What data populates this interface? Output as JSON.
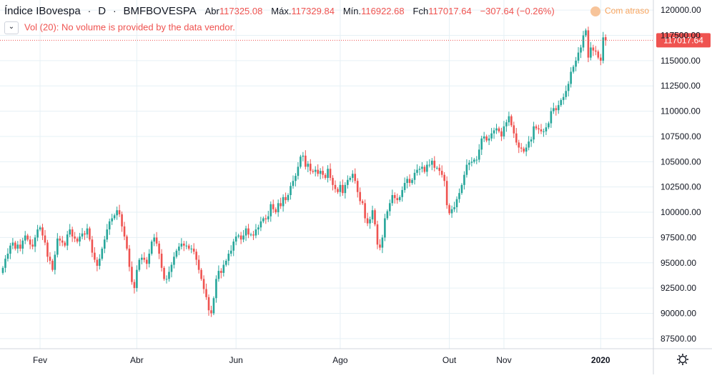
{
  "header": {
    "symbol": "Índice IBovespa",
    "interval": "D",
    "exchange": "BMFBOVESPA",
    "open_label": "Abr",
    "open": "117325.08",
    "high_label": "Máx.",
    "high": "117329.84",
    "low_label": "Mín.",
    "low": "116922.68",
    "close_label": "Fch",
    "close": "117017.64",
    "change": "−307.64 (−0.26%)",
    "delayed_label": "Com atraso"
  },
  "volume": {
    "toggle_icon": "chevron-down-icon",
    "message": "Vol (20): No volume is provided by the data vendor."
  },
  "settings_icon": "gear-icon",
  "colors": {
    "up": "#26a69a",
    "down": "#ef5350",
    "grid": "#e6f0f5",
    "axis_text": "#131722",
    "last_price_bg": "#ef5350"
  },
  "chart_data": {
    "type": "candlestick",
    "title": "",
    "xlabel": "",
    "ylabel": "",
    "ylim": [
      86500,
      121000
    ],
    "yticks": [
      "87500.00",
      "90000.00",
      "92500.00",
      "95000.00",
      "97500.00",
      "100000.00",
      "102500.00",
      "105000.00",
      "107500.00",
      "110000.00",
      "112500.00",
      "115000.00",
      "117500.00",
      "120000.00"
    ],
    "x_tick_labels": [
      {
        "index": 15,
        "label": "Fev"
      },
      {
        "index": 54,
        "label": "Abr"
      },
      {
        "index": 94,
        "label": "Jun"
      },
      {
        "index": 136,
        "label": "Ago"
      },
      {
        "index": 180,
        "label": "Out"
      },
      {
        "index": 202,
        "label": "Nov"
      },
      {
        "index": 241,
        "label": "2020"
      }
    ],
    "last_price": "117017.64",
    "grid": true,
    "close": [
      94500,
      95400,
      95900,
      96700,
      97000,
      96400,
      96800,
      96400,
      97200,
      97700,
      97300,
      96800,
      96600,
      97500,
      98300,
      98500,
      97700,
      97000,
      95600,
      95200,
      94300,
      95800,
      97400,
      97200,
      97000,
      96700,
      97800,
      98300,
      97600,
      97400,
      97100,
      97600,
      97900,
      97800,
      98400,
      97300,
      96000,
      95300,
      94700,
      95400,
      96400,
      97300,
      98300,
      99100,
      99400,
      99700,
      100200,
      99800,
      98600,
      97600,
      96400,
      94600,
      93100,
      92500,
      94300,
      95300,
      95500,
      95300,
      94900,
      95900,
      97100,
      97500,
      96900,
      95900,
      94500,
      93400,
      93400,
      94100,
      94800,
      95600,
      96200,
      96600,
      96900,
      96700,
      96700,
      96400,
      96400,
      96100,
      95300,
      94300,
      93400,
      92400,
      91600,
      90300,
      90000,
      91500,
      93400,
      94200,
      94000,
      94800,
      95200,
      95900,
      96200,
      97100,
      97600,
      97700,
      97300,
      97700,
      98400,
      97800,
      97800,
      97700,
      98300,
      98500,
      99100,
      99400,
      99300,
      99600,
      100800,
      100300,
      100000,
      100900,
      100600,
      101500,
      101200,
      101700,
      102600,
      103100,
      103600,
      104500,
      105500,
      105600,
      104500,
      104800,
      104100,
      104000,
      104200,
      103800,
      104100,
      103700,
      103400,
      104300,
      103400,
      102700,
      102300,
      102000,
      102700,
      101900,
      102700,
      103200,
      103400,
      103800,
      103100,
      102000,
      101100,
      100900,
      99400,
      98900,
      99300,
      100200,
      98800,
      96800,
      96500,
      97500,
      99400,
      100100,
      100900,
      101700,
      101400,
      101200,
      101500,
      102200,
      102900,
      103300,
      102900,
      103200,
      103900,
      104200,
      104300,
      104500,
      104000,
      104700,
      104700,
      105100,
      104400,
      104400,
      104100,
      103700,
      103100,
      100700,
      99900,
      100300,
      100500,
      101300,
      101900,
      102700,
      103700,
      104700,
      104900,
      105000,
      105200,
      105200,
      106200,
      107300,
      107500,
      107100,
      107300,
      107800,
      108100,
      108300,
      108000,
      107500,
      108500,
      108900,
      109500,
      108600,
      107800,
      106900,
      106400,
      106300,
      106000,
      106400,
      107000,
      107200,
      108500,
      108300,
      108200,
      108000,
      108000,
      108400,
      108800,
      110000,
      110300,
      110100,
      110600,
      111100,
      111400,
      112000,
      112700,
      113900,
      114400,
      115000,
      115800,
      116300,
      117500,
      118000,
      115300,
      116300,
      116000,
      115900,
      115300,
      115000,
      117300,
      117017.64
    ],
    "open": [
      94000,
      94500,
      95400,
      95900,
      96700,
      97000,
      96400,
      96800,
      96400,
      97200,
      97700,
      97300,
      96800,
      96600,
      97500,
      98300,
      98500,
      97700,
      97000,
      95600,
      95200,
      94300,
      95800,
      97400,
      97200,
      97000,
      96700,
      97800,
      98300,
      97600,
      97400,
      97100,
      97600,
      97900,
      97800,
      98400,
      97300,
      96000,
      95300,
      94700,
      95400,
      96400,
      97300,
      98300,
      99100,
      99400,
      99700,
      100200,
      99800,
      98600,
      97600,
      96400,
      94600,
      93100,
      92500,
      94300,
      95300,
      95500,
      95300,
      94900,
      95900,
      97100,
      97500,
      96900,
      95900,
      94500,
      93400,
      93400,
      94100,
      94800,
      95600,
      96200,
      96600,
      96900,
      96700,
      96700,
      96400,
      96400,
      96100,
      95300,
      94300,
      93400,
      92400,
      91600,
      90300,
      90000,
      91500,
      93400,
      94200,
      94000,
      94800,
      95200,
      95900,
      96200,
      97100,
      97600,
      97700,
      97300,
      97700,
      98400,
      97800,
      97800,
      97700,
      98300,
      98500,
      99100,
      99400,
      99300,
      99600,
      100800,
      100300,
      100000,
      100900,
      100600,
      101500,
      101200,
      101700,
      102600,
      103100,
      103600,
      104500,
      105500,
      105600,
      104500,
      104800,
      104100,
      104000,
      104200,
      103800,
      104100,
      103700,
      103400,
      104300,
      103400,
      102700,
      102300,
      102000,
      102700,
      101900,
      102700,
      103200,
      103400,
      103800,
      103100,
      102000,
      101100,
      100900,
      99400,
      98900,
      99300,
      100200,
      98800,
      96800,
      96500,
      97500,
      99400,
      100100,
      100900,
      101700,
      101400,
      101200,
      101500,
      102200,
      102900,
      103300,
      102900,
      103200,
      103900,
      104200,
      104300,
      104500,
      104000,
      104700,
      104700,
      105100,
      104400,
      104400,
      104100,
      103700,
      103100,
      100700,
      99900,
      100300,
      100500,
      101300,
      101900,
      102700,
      103700,
      104700,
      104900,
      105000,
      105200,
      105200,
      106200,
      107300,
      107500,
      107100,
      107300,
      107800,
      108100,
      108300,
      108000,
      107500,
      108500,
      108900,
      109500,
      108600,
      107800,
      106900,
      106400,
      106300,
      106000,
      106400,
      107000,
      107200,
      108500,
      108300,
      108200,
      108000,
      108000,
      108400,
      108800,
      110000,
      110300,
      110100,
      110600,
      111100,
      111400,
      112000,
      112700,
      113900,
      114400,
      115000,
      115800,
      116300,
      117500,
      118000,
      115300,
      116300,
      116000,
      115900,
      115300,
      115000,
      117325.08
    ]
  }
}
